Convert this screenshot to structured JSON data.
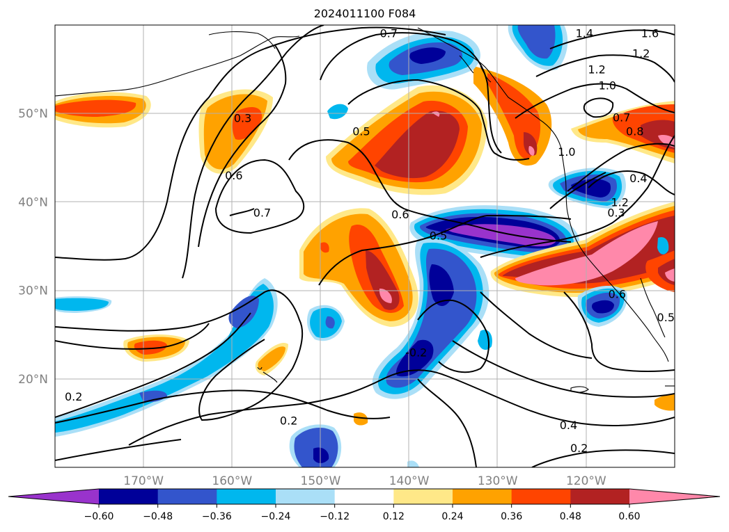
{
  "map": {
    "title": "2024011100 F084",
    "lat_labels": [
      {
        "text": "50°N",
        "lat": 50
      },
      {
        "text": "40°N",
        "lat": 40
      },
      {
        "text": "30°N",
        "lat": 30
      },
      {
        "text": "20°N",
        "lat": 20
      }
    ],
    "lon_labels": [
      {
        "text": "170°W",
        "lon": -170
      },
      {
        "text": "160°W",
        "lon": -160
      },
      {
        "text": "150°W",
        "lon": -150
      },
      {
        "text": "140°W",
        "lon": -140
      },
      {
        "text": "130°W",
        "lon": -130
      },
      {
        "text": "120°W",
        "lon": -120
      }
    ],
    "extent": {
      "lon_min": -180,
      "lon_max": -110,
      "lat_min": 10,
      "lat_max": 60
    },
    "contour_labels": [
      {
        "text": "0.7",
        "lon": -142.3,
        "lat": 59.1
      },
      {
        "text": "1.4",
        "lon": -120.2,
        "lat": 59.1
      },
      {
        "text": "1.6",
        "lon": -112.8,
        "lat": 59.1
      },
      {
        "text": "1.2",
        "lon": -113.8,
        "lat": 56.8
      },
      {
        "text": "1.2",
        "lon": -118.8,
        "lat": 55.0
      },
      {
        "text": "1.0",
        "lon": -117.6,
        "lat": 53.2
      },
      {
        "text": "0.3",
        "lon": -158.8,
        "lat": 49.5
      },
      {
        "text": "0.5",
        "lon": -145.4,
        "lat": 48.0
      },
      {
        "text": "0.7",
        "lon": -116.0,
        "lat": 49.6
      },
      {
        "text": "0.8",
        "lon": -114.5,
        "lat": 48.0
      },
      {
        "text": "1.0",
        "lon": -122.2,
        "lat": 45.7
      },
      {
        "text": "0.6",
        "lon": -159.8,
        "lat": 43.0
      },
      {
        "text": "0.4",
        "lon": -114.1,
        "lat": 42.7
      },
      {
        "text": "1.2",
        "lon": -116.2,
        "lat": 40.0
      },
      {
        "text": "0.7",
        "lon": -156.6,
        "lat": 38.8
      },
      {
        "text": "0.6",
        "lon": -141.0,
        "lat": 38.6
      },
      {
        "text": "0.3",
        "lon": -116.6,
        "lat": 38.8
      },
      {
        "text": "0.5",
        "lon": -136.7,
        "lat": 36.2
      },
      {
        "text": "0.6",
        "lon": -116.5,
        "lat": 29.6
      },
      {
        "text": "0.5",
        "lon": -111.0,
        "lat": 27.0
      },
      {
        "text": "-0.2",
        "lon": -139.2,
        "lat": 23.0
      },
      {
        "text": "0.2",
        "lon": -177.9,
        "lat": 18.0
      },
      {
        "text": "0.2",
        "lon": -153.6,
        "lat": 15.3
      },
      {
        "text": "0.4",
        "lon": -122.0,
        "lat": 14.8
      },
      {
        "text": "0.2",
        "lon": -120.8,
        "lat": 12.2
      }
    ]
  },
  "colorbar": {
    "levels": [
      "−0.60",
      "−0.48",
      "−0.36",
      "−0.24",
      "−0.12",
      "0.12",
      "0.24",
      "0.36",
      "0.48",
      "0.60"
    ],
    "colors": [
      "#9933cc",
      "#000099",
      "#3355cc",
      "#00b7ee",
      "#aadff7",
      "#ffffff",
      "#ffe888",
      "#ffa200",
      "#ff4400",
      "#b22222",
      "#ff88aa"
    ]
  }
}
